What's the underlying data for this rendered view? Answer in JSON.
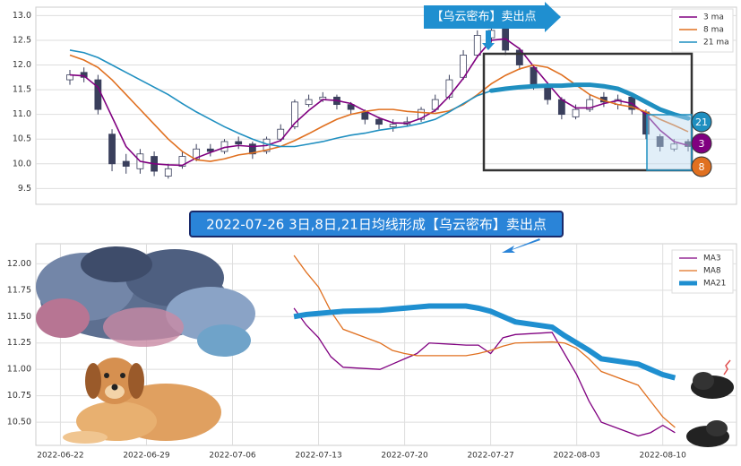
{
  "chart_data": [
    {
      "type": "candlestick",
      "title": "【乌云密布】卖出点",
      "open": [
        11.7,
        11.85,
        11.7,
        10.6,
        10.05,
        9.9,
        10.15,
        9.75,
        9.95,
        10.1,
        10.3,
        10.25,
        10.45,
        10.4,
        10.25,
        10.5,
        10.75,
        11.2,
        11.3,
        11.35,
        11.2,
        11.05,
        10.9,
        10.75,
        10.8,
        10.9,
        11.1,
        11.35,
        11.75,
        12.2,
        12.55,
        12.75,
        12.3,
        11.95,
        11.6,
        11.3,
        10.95,
        11.1,
        11.35,
        11.2,
        11.35,
        11.05,
        10.55,
        10.3,
        10.45
      ],
      "high": [
        11.9,
        11.95,
        11.8,
        10.7,
        10.2,
        10.3,
        10.25,
        10.0,
        10.25,
        10.4,
        10.4,
        10.5,
        10.55,
        10.45,
        10.55,
        10.8,
        11.3,
        11.4,
        11.45,
        11.4,
        11.25,
        11.1,
        10.95,
        10.9,
        10.95,
        11.15,
        11.4,
        11.8,
        12.3,
        12.7,
        12.9,
        12.8,
        12.35,
        12.0,
        11.65,
        11.35,
        11.2,
        11.4,
        11.45,
        11.4,
        11.4,
        11.1,
        10.6,
        10.5,
        10.5
      ],
      "low": [
        11.6,
        11.65,
        11.0,
        9.85,
        9.8,
        9.8,
        9.75,
        9.7,
        9.9,
        10.05,
        10.15,
        10.2,
        10.3,
        10.1,
        10.2,
        10.45,
        10.7,
        11.15,
        11.25,
        11.1,
        11.0,
        10.8,
        10.7,
        10.65,
        10.75,
        10.85,
        11.05,
        11.3,
        11.7,
        12.15,
        12.45,
        12.2,
        11.9,
        11.5,
        11.2,
        10.9,
        10.9,
        11.05,
        11.15,
        11.1,
        11.0,
        10.5,
        10.25,
        10.25,
        10.25
      ],
      "close": [
        11.8,
        11.75,
        11.1,
        10.0,
        9.95,
        10.2,
        9.85,
        9.9,
        10.15,
        10.3,
        10.25,
        10.45,
        10.4,
        10.2,
        10.5,
        10.7,
        11.25,
        11.3,
        11.35,
        11.2,
        11.1,
        10.9,
        10.8,
        10.8,
        10.85,
        11.1,
        11.3,
        11.7,
        12.2,
        12.6,
        12.7,
        12.3,
        12.0,
        11.6,
        11.3,
        11.0,
        11.1,
        11.3,
        11.25,
        11.3,
        11.1,
        10.6,
        10.35,
        10.4,
        10.35
      ],
      "up_color": "#ffffff",
      "down_color": "#3a3f5c",
      "series": [
        {
          "name": "3 ma",
          "color": "#800080",
          "values": [
            11.8,
            11.78,
            11.55,
            10.95,
            10.35,
            10.05,
            10.0,
            9.98,
            9.97,
            10.12,
            10.23,
            10.33,
            10.37,
            10.35,
            10.37,
            10.47,
            10.82,
            11.08,
            11.3,
            11.28,
            11.22,
            11.07,
            10.93,
            10.83,
            10.82,
            10.92,
            11.08,
            11.37,
            11.73,
            12.17,
            12.5,
            12.53,
            12.33,
            11.97,
            11.63,
            11.3,
            11.13,
            11.13,
            11.22,
            11.28,
            11.22,
            11.0,
            10.68,
            10.45,
            10.37
          ]
        },
        {
          "name": "8 ma",
          "color": "#e07020",
          "values": [
            12.2,
            12.1,
            11.95,
            11.7,
            11.4,
            11.1,
            10.8,
            10.5,
            10.25,
            10.08,
            10.05,
            10.1,
            10.18,
            10.22,
            10.28,
            10.35,
            10.47,
            10.61,
            10.76,
            10.9,
            11.0,
            11.06,
            11.1,
            11.1,
            11.06,
            11.04,
            11.02,
            11.07,
            11.2,
            11.4,
            11.62,
            11.79,
            11.92,
            12.0,
            11.95,
            11.8,
            11.6,
            11.4,
            11.28,
            11.2,
            11.15,
            11.05,
            10.9,
            10.78,
            10.65
          ]
        },
        {
          "name": "21 ma",
          "color": "#1f8fc0",
          "values": [
            12.3,
            12.25,
            12.15,
            12.0,
            11.85,
            11.7,
            11.55,
            11.4,
            11.22,
            11.05,
            10.9,
            10.75,
            10.62,
            10.5,
            10.4,
            10.35,
            10.35,
            10.4,
            10.45,
            10.52,
            10.58,
            10.62,
            10.68,
            10.72,
            10.76,
            10.82,
            10.9,
            11.05,
            11.22,
            11.38,
            11.48,
            11.52,
            11.55,
            11.57,
            11.58,
            11.58,
            11.6,
            11.6,
            11.57,
            11.52,
            11.4,
            11.25,
            11.1,
            11.0,
            10.92
          ]
        }
      ],
      "ylim": [
        9.18,
        13.17
      ],
      "yticks": [
        9.5,
        {
          "value": 10,
          "label": "10.0"
        },
        10.5,
        {
          "value": 11,
          "label": "11.0"
        },
        11.5,
        {
          "value": 12,
          "label": "12.0"
        },
        12.5,
        {
          "value": 13,
          "label": "13.0"
        }
      ],
      "grid": true,
      "legend": "upper right",
      "end_labels": [
        "21",
        "3",
        "8"
      ]
    },
    {
      "type": "line",
      "title": "2022-07-26 3日,8日,21日均线形成【乌云密布】卖出点",
      "x": [
        "2022-07-11",
        "2022-07-12",
        "2022-07-13",
        "2022-07-14",
        "2022-07-15",
        "2022-07-18",
        "2022-07-19",
        "2022-07-20",
        "2022-07-21",
        "2022-07-22",
        "2022-07-25",
        "2022-07-26",
        "2022-07-27",
        "2022-07-28",
        "2022-07-29",
        "2022-08-01",
        "2022-08-02",
        "2022-08-03",
        "2022-08-04",
        "2022-08-05",
        "2022-08-08",
        "2022-08-09",
        "2022-08-10",
        "2022-08-11"
      ],
      "series": [
        {
          "name": "MA3",
          "color": "#800080",
          "linewidth": 1.3,
          "values": [
            11.58,
            11.42,
            11.3,
            11.12,
            11.02,
            11.0,
            11.05,
            11.1,
            11.15,
            11.25,
            11.23,
            11.23,
            11.15,
            11.3,
            11.33,
            11.35,
            11.15,
            10.95,
            10.7,
            10.5,
            10.37,
            10.4,
            10.47,
            10.4
          ]
        },
        {
          "name": "MA8",
          "color": "#e07020",
          "linewidth": 1.3,
          "values": [
            12.08,
            11.92,
            11.78,
            11.55,
            11.38,
            11.25,
            11.18,
            11.15,
            11.13,
            11.13,
            11.13,
            11.15,
            11.18,
            11.22,
            11.25,
            11.26,
            11.25,
            11.2,
            11.1,
            10.98,
            10.85,
            10.7,
            10.55,
            10.45
          ]
        },
        {
          "name": "MA21",
          "color": "#1f8fd0",
          "linewidth": 6,
          "values": [
            11.5,
            11.52,
            11.53,
            11.54,
            11.55,
            11.56,
            11.57,
            11.58,
            11.59,
            11.6,
            11.6,
            11.58,
            11.55,
            11.5,
            11.45,
            11.4,
            11.32,
            11.25,
            11.18,
            11.1,
            11.05,
            11.0,
            10.95,
            10.92
          ]
        }
      ],
      "xlim": [
        "2022-06-20",
        "2022-08-16"
      ],
      "xticks": [
        "2022-06-22",
        "2022-06-29",
        "2022-07-06",
        "2022-07-13",
        "2022-07-20",
        "2022-07-27",
        "2022-08-03",
        "2022-08-10"
      ],
      "ylim": [
        10.28,
        12.19
      ],
      "yticks": [
        {
          "value": 10.5,
          "label": "10.50"
        },
        10.75,
        {
          "value": 11,
          "label": "11.00"
        },
        11.25,
        {
          "value": 11.5,
          "label": "11.50"
        },
        11.75,
        {
          "value": 12,
          "label": "12.00"
        }
      ],
      "grid": true,
      "legend": "upper right"
    }
  ]
}
